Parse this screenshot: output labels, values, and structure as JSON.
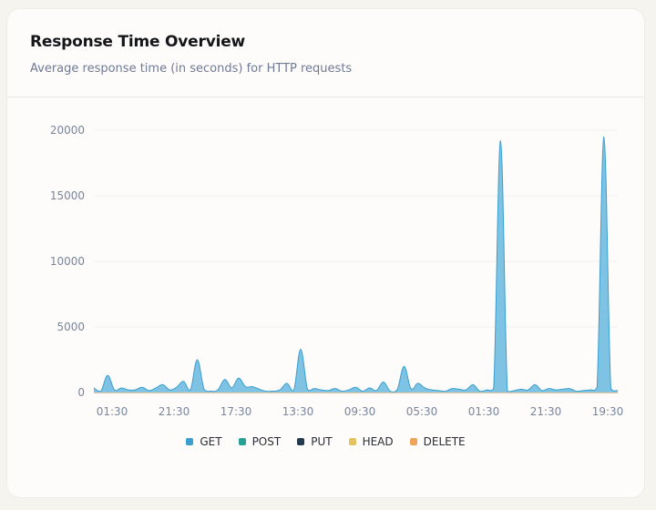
{
  "card": {
    "title": "Response Time Overview",
    "subtitle": "Average response time (in seconds) for HTTP requests"
  },
  "chart_data": {
    "type": "area",
    "title": "Response Time Overview",
    "subtitle": "Average response time (in seconds) for HTTP requests",
    "xlabel": "",
    "ylabel": "",
    "ylim": [
      0,
      20000
    ],
    "yticks": [
      0,
      5000,
      10000,
      15000,
      20000
    ],
    "xticks": [
      "01:30",
      "21:30",
      "17:30",
      "13:30",
      "09:30",
      "05:30",
      "01:30",
      "21:30",
      "19:30"
    ],
    "grid": true,
    "legend_position": "bottom",
    "series": [
      {
        "name": "GET",
        "color": "#3a9ecf",
        "fill": "#7ec3e3",
        "values": [
          350,
          100,
          1300,
          200,
          350,
          200,
          200,
          400,
          150,
          350,
          600,
          200,
          400,
          850,
          200,
          2500,
          250,
          100,
          200,
          1000,
          350,
          1100,
          450,
          450,
          250,
          100,
          100,
          200,
          700,
          150,
          3300,
          250,
          300,
          200,
          150,
          300,
          100,
          200,
          400,
          100,
          350,
          150,
          800,
          100,
          200,
          2000,
          300,
          700,
          350,
          200,
          150,
          100,
          300,
          250,
          200,
          600,
          100,
          200,
          300,
          19200,
          100,
          150,
          250,
          200,
          600,
          150,
          300,
          200,
          250,
          300,
          100,
          150,
          200,
          400,
          19500,
          300,
          150
        ]
      },
      {
        "name": "POST",
        "color": "#27a096",
        "values": [
          20,
          20,
          20,
          20,
          20,
          20,
          20,
          20,
          20,
          20
        ]
      },
      {
        "name": "PUT",
        "color": "#213a4d",
        "values": [
          10,
          10,
          10,
          10,
          10,
          10,
          10,
          10,
          10,
          10
        ]
      },
      {
        "name": "HEAD",
        "color": "#e6c25f",
        "values": [
          5,
          5,
          5,
          5,
          5,
          5,
          5,
          5,
          5,
          5
        ]
      },
      {
        "name": "DELETE",
        "color": "#f0a35b",
        "values": [
          15,
          15,
          15,
          15,
          15,
          15,
          15,
          15,
          15,
          15
        ]
      }
    ]
  }
}
